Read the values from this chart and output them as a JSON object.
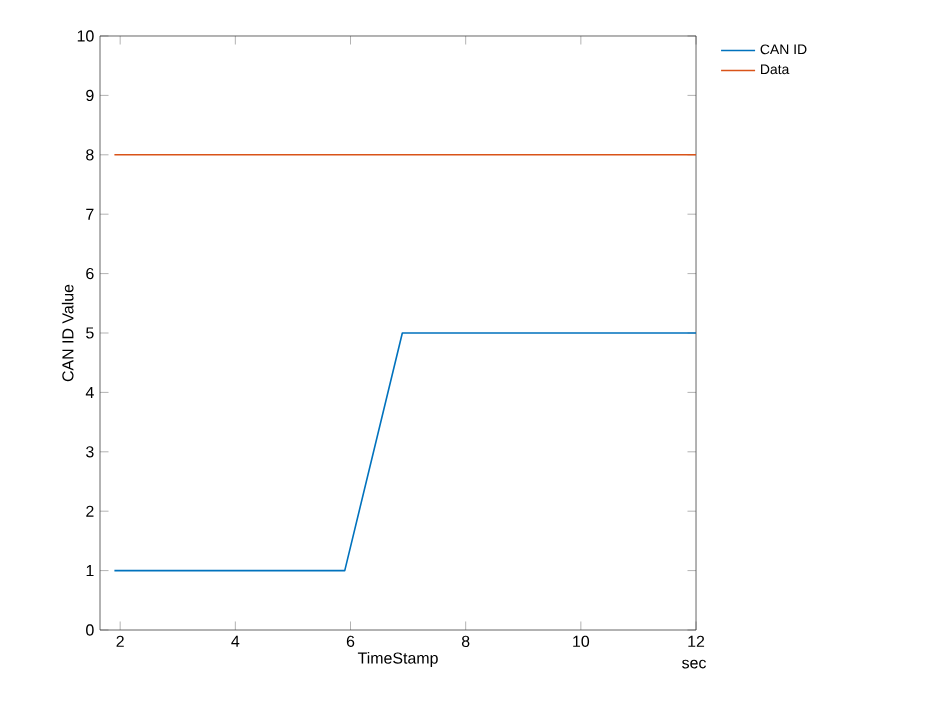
{
  "chart_data": {
    "type": "line",
    "xlabel": "TimeStamp",
    "ylabel": "CAN ID Value",
    "annotations": [
      "sec"
    ],
    "xlim": [
      1.65,
      12
    ],
    "xticks": [
      2,
      4,
      6,
      8,
      10,
      12
    ],
    "ylim": [
      0,
      10
    ],
    "yticks": [
      0,
      1,
      2,
      3,
      4,
      5,
      6,
      7,
      8,
      9,
      10
    ],
    "series": [
      {
        "name": "CAN ID",
        "color": "#0072bd",
        "x": [
          1.9,
          5.9,
          6.9,
          12
        ],
        "values": [
          1,
          1,
          5,
          5
        ]
      },
      {
        "name": "Data",
        "color": "#d95319",
        "x": [
          1.9,
          12
        ],
        "values": [
          8,
          8
        ]
      }
    ],
    "legend": "top right",
    "grid": false,
    "marker": "none",
    "line_style": "solid"
  }
}
